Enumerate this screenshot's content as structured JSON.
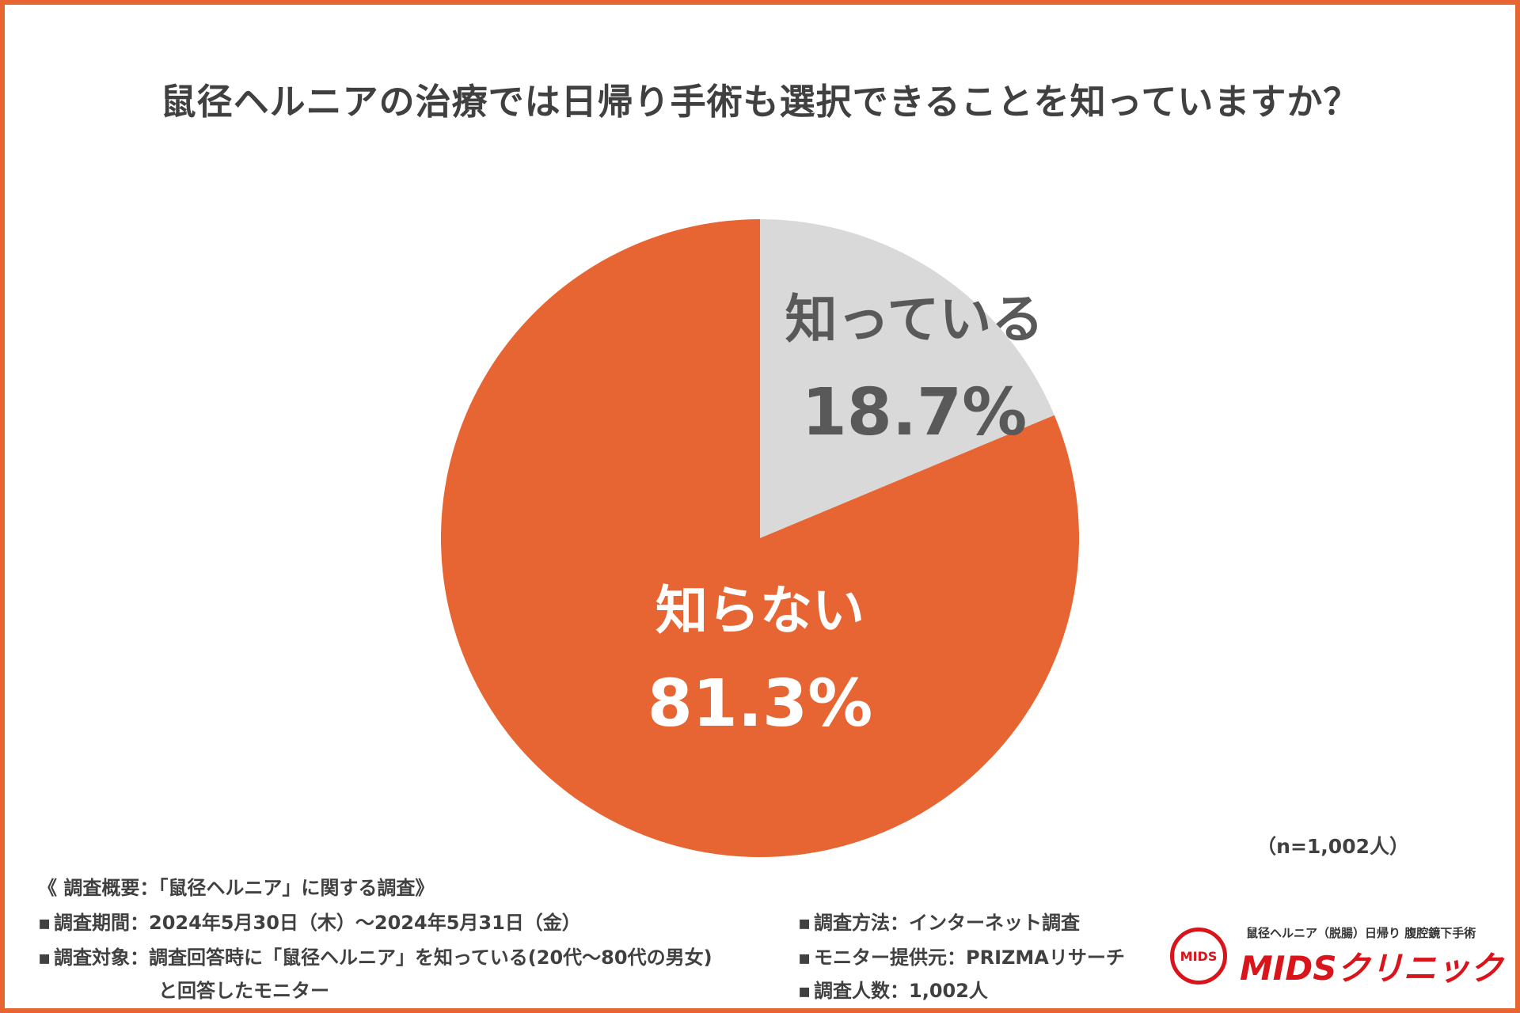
{
  "chart_data": {
    "type": "pie",
    "title": "鼠径ヘルニアの治療では日帰り手術も選択できることを知っていますか？",
    "categories": [
      "知っている",
      "知らない"
    ],
    "values": [
      18.7,
      81.3
    ],
    "value_labels": [
      "18.7%",
      "81.3%"
    ],
    "colors": [
      "#d9d9d9",
      "#e66532"
    ],
    "start_angle_deg": 0,
    "direction": "clockwise",
    "note": "（n=1,002人）"
  },
  "survey": {
    "heading": "《 調査概要：「鼠径ヘルニア」に関する調査》",
    "left_lines": [
      "調査期間：2024年5月30日（木）〜2024年5月31日（金）",
      "調査対象：調査回答時に「鼠径ヘルニア」を知っている(20代〜80代の男女)",
      "と回答したモニター"
    ],
    "right_lines": [
      "調査方法：インターネット調査",
      "モニター提供元：PRIZMAリサーチ",
      "調査人数：1,002人"
    ],
    "bullet": "▪"
  },
  "logo": {
    "mark_text": "MIDS",
    "tagline": "鼠径ヘルニア（脱腸）日帰り 腹腔鏡下手術",
    "name": "MIDSクリニック"
  },
  "colors": {
    "border": "#e66532",
    "text": "#404040",
    "logo_red": "#d9141b"
  }
}
